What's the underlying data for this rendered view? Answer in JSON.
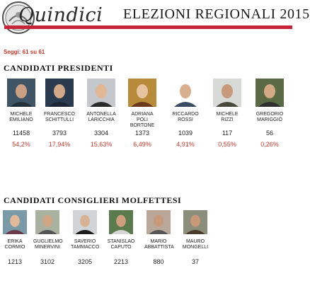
{
  "header": {
    "logo_text": "Quindici",
    "page_title": "ELEZIONI REGIONALI 2015"
  },
  "seggi_label": "Seggi: 61 su 61",
  "presidents_section": {
    "title": "CANDIDATI PRESIDENTI",
    "candidates": [
      {
        "first": "MICHELE",
        "last": "EMILIANO",
        "extra": "",
        "votes": "11458",
        "percent": "54,2%"
      },
      {
        "first": "FRANCESCO",
        "last": "SCHITTULLI",
        "extra": "",
        "votes": "3793",
        "percent": "17,94%"
      },
      {
        "first": "ANTONELLA",
        "last": "LARICCHIA",
        "extra": "",
        "votes": "3304",
        "percent": "15,63%"
      },
      {
        "first": "ADRIANA",
        "last": "POLI",
        "extra": "BORTONE",
        "votes": "1373",
        "percent": "6,49%"
      },
      {
        "first": "RICCARDO",
        "last": "ROSSI",
        "extra": "",
        "votes": "1039",
        "percent": "4,91%"
      },
      {
        "first": "MICHELE",
        "last": "RIZZI",
        "extra": "",
        "votes": "117",
        "percent": "0,55%"
      },
      {
        "first": "GREGORIO",
        "last": "MARIGGIÒ",
        "extra": "",
        "votes": "56",
        "percent": "0,26%"
      }
    ]
  },
  "councillors_section": {
    "title": "CANDIDATI CONSIGLIERI MOLFETTESI",
    "candidates": [
      {
        "first": "ERIKA",
        "last": "CORMIO",
        "votes": "1213"
      },
      {
        "first": "GUGLIELMO",
        "last": "MINERVINI",
        "votes": "3102"
      },
      {
        "first": "SAVERIO",
        "last": "TAMMACCO",
        "votes": "3205"
      },
      {
        "first": "STANISLAO",
        "last": "CAPUTO",
        "votes": "2213"
      },
      {
        "first": "MARIO",
        "last": "ABBATTISTA",
        "votes": "880"
      },
      {
        "first": "MAURO",
        "last": "MONGELLI",
        "votes": "37"
      }
    ]
  },
  "colors": {
    "brand_red": "#c6243a",
    "percent_red": "#c0392b"
  }
}
